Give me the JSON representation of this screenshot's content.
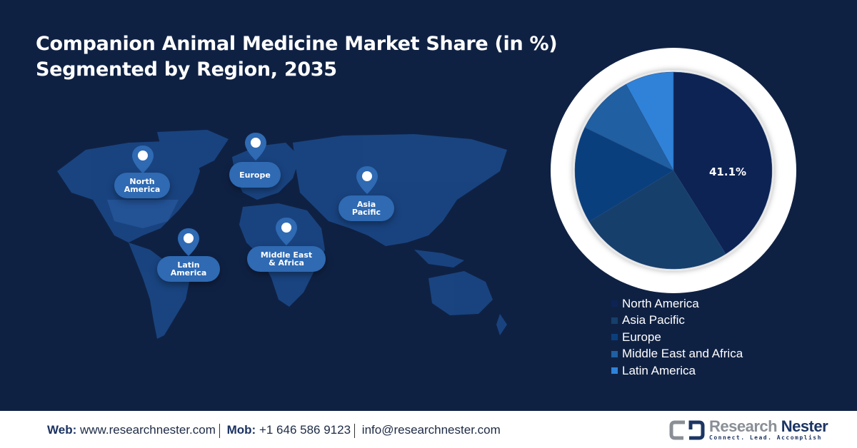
{
  "header": {
    "title_line1": "Companion Animal Medicine Market Share (in %)",
    "title_line2": "Segmented by Region, 2035"
  },
  "map": {
    "regions": [
      {
        "label_line1": "North",
        "label_line2": "America"
      },
      {
        "label_line1": "Europe",
        "label_line2": ""
      },
      {
        "label_line1": "Asia",
        "label_line2": "Pacific"
      },
      {
        "label_line1": "Latin",
        "label_line2": "America"
      },
      {
        "label_line1": "Middle East",
        "label_line2": "& Africa"
      }
    ]
  },
  "pie": {
    "slice_label": "41.1%"
  },
  "legend": {
    "items": [
      {
        "label": "North America",
        "color": "#0d2354"
      },
      {
        "label": "Asia Pacific",
        "color": "#163f6b"
      },
      {
        "label": "Europe",
        "color": "#0a3f7d"
      },
      {
        "label": "Middle East and Africa",
        "color": "#1f5fa2"
      },
      {
        "label": "Latin America",
        "color": "#2f82d8"
      }
    ]
  },
  "footer": {
    "web_label": "Web:",
    "web_value": "www.researchnester.com",
    "mob_label": "Mob:",
    "mob_value": "+1 646 586 9123",
    "email": "info@researchnester.com",
    "logo_word1": "Research",
    "logo_word2": "Nester",
    "logo_tagline": "Connect. Lead. Accomplish"
  },
  "chart_data": {
    "type": "pie",
    "title": "Companion Animal Medicine Market Share (in %) Segmented by Region, 2035",
    "categories": [
      "North America",
      "Asia Pacific",
      "Europe",
      "Middle East and Africa",
      "Latin America"
    ],
    "values": [
      41.1,
      25.2,
      15.9,
      9.8,
      8.0
    ],
    "labeled_values": {
      "North America": "41.1%"
    },
    "colors": [
      "#0d2354",
      "#163f6b",
      "#0a3f7d",
      "#1f5fa2",
      "#2f82d8"
    ],
    "legend_position": "bottom-right",
    "start_angle": "top, clockwise"
  }
}
